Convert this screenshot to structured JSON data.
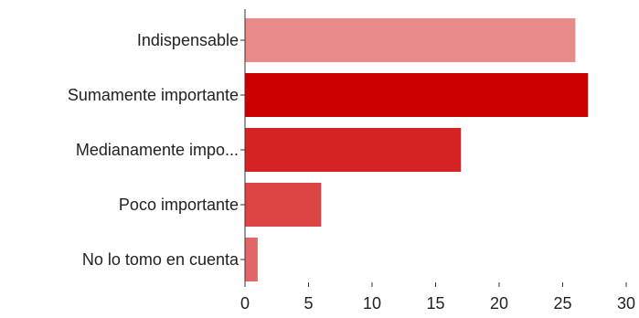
{
  "chart_data": {
    "type": "bar",
    "orientation": "horizontal",
    "categories": [
      "Indispensable",
      "Sumamente importante",
      "Medianamente impo...",
      "Poco importante",
      "No lo tomo en cuenta"
    ],
    "values": [
      26,
      27,
      17,
      6,
      1
    ],
    "bar_colors": [
      "#e98a8a",
      "#cc0000",
      "#d62222",
      "#dd4444",
      "#e36666"
    ],
    "xlim": [
      0,
      30
    ],
    "xticks": [
      0,
      5,
      10,
      15,
      20,
      25,
      30
    ],
    "title": "",
    "xlabel": "",
    "ylabel": "",
    "grid": false,
    "legend": "none"
  }
}
